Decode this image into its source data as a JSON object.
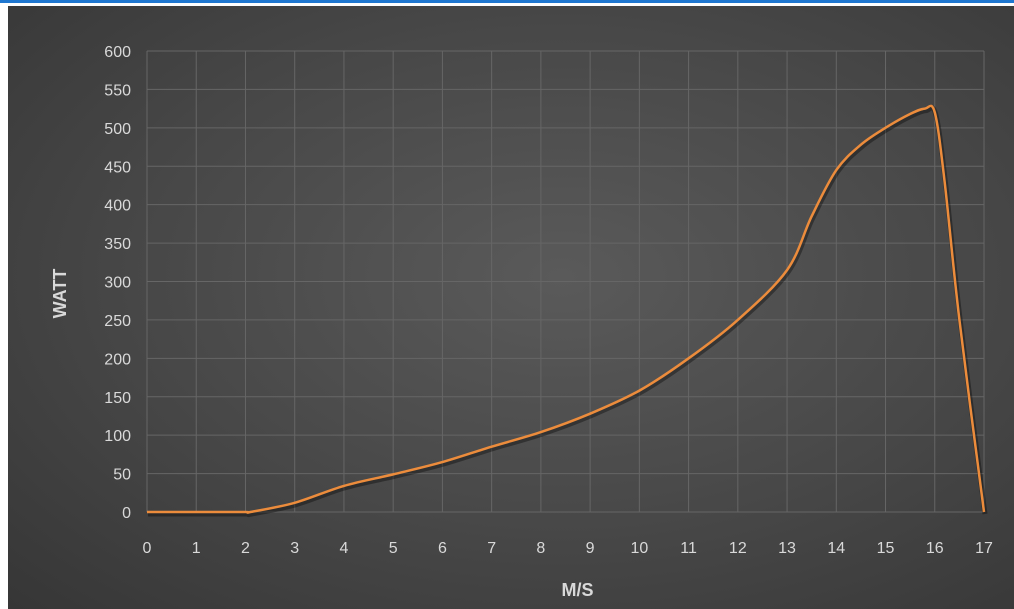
{
  "chart_data": {
    "type": "line",
    "title": "",
    "xlabel": "M/S",
    "ylabel": "WATT",
    "xlim": [
      0,
      17
    ],
    "ylim": [
      0,
      600
    ],
    "x_ticks": [
      "0",
      "1",
      "2",
      "3",
      "4",
      "5",
      "6",
      "7",
      "8",
      "9",
      "10",
      "11",
      "12",
      "13",
      "14",
      "15",
      "16",
      "17"
    ],
    "y_ticks": [
      "0",
      "50",
      "100",
      "150",
      "200",
      "250",
      "300",
      "350",
      "400",
      "450",
      "500",
      "550",
      "600"
    ],
    "grid": true,
    "legend": "none",
    "series": [
      {
        "color": "#ec8c3c",
        "x": [
          0,
          1,
          2,
          2.1,
          3,
          4,
          5,
          6,
          7,
          8,
          9,
          10,
          11,
          12,
          13,
          13.5,
          14,
          14.5,
          15,
          15.5,
          15.8,
          16,
          16.2,
          16.5,
          17
        ],
        "y": [
          0,
          0,
          0,
          0,
          12,
          34,
          49,
          65,
          85,
          104,
          128,
          158,
          200,
          250,
          315,
          385,
          445,
          478,
          500,
          518,
          525,
          520,
          430,
          250,
          0
        ]
      }
    ]
  },
  "colors": {
    "background": "#474747",
    "grid": "#666666",
    "line": "#ec8c3c",
    "text": "#d9d9d9",
    "accent_rule": "#1f77d0"
  }
}
